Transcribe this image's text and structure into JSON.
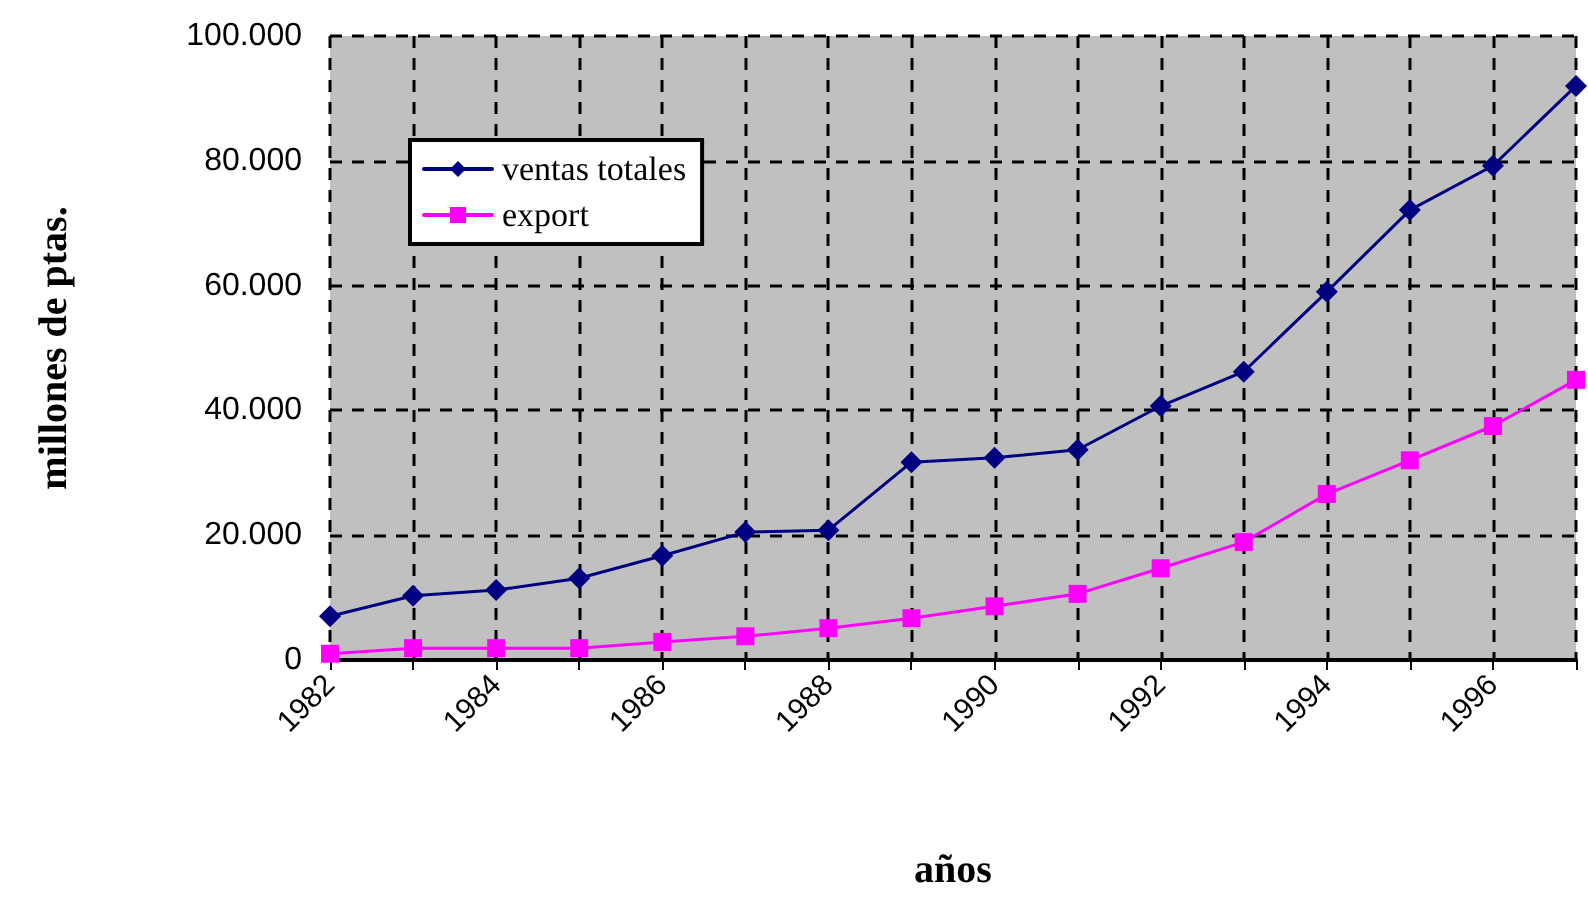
{
  "chart_data": {
    "type": "line",
    "xlabel": "años",
    "ylabel": "millones de ptas.",
    "categories": [
      "1982",
      null,
      "1984",
      null,
      "1986",
      null,
      "1988",
      null,
      "1990",
      null,
      "1992",
      null,
      "1994",
      null,
      "1996",
      null
    ],
    "series": [
      {
        "name": "ventas totales",
        "color": "#000080",
        "marker": "diamond",
        "values": [
          7000,
          10300,
          11200,
          13100,
          16700,
          20500,
          20800,
          31700,
          32400,
          33700,
          40700,
          46200,
          59000,
          72100,
          79200,
          92000
        ]
      },
      {
        "name": "export",
        "color": "#ff00ff",
        "marker": "square",
        "values": [
          1000,
          1900,
          1900,
          1900,
          2900,
          3800,
          5100,
          6700,
          8600,
          10600,
          14700,
          18900,
          26600,
          32000,
          37500,
          44900
        ]
      }
    ],
    "ylim": [
      0,
      100000
    ],
    "yticks": [
      0,
      {
        "value": 20000,
        "label": "20.000"
      },
      {
        "value": 40000,
        "label": "40.000"
      },
      {
        "value": 60000,
        "label": "60.000"
      },
      {
        "value": 80000,
        "label": "80.000"
      },
      {
        "value": 100000,
        "label": "100.000"
      }
    ],
    "grid": true,
    "legend": "top left",
    "line_style": "solid"
  }
}
